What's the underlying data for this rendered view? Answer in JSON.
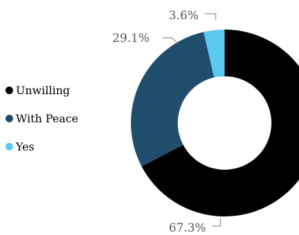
{
  "chart_data": {
    "type": "pie",
    "donut": true,
    "categories": [
      "Unwilling",
      "With Peace",
      "Yes"
    ],
    "values": [
      67.3,
      29.1,
      3.6
    ],
    "value_labels": [
      "67.3%",
      "29.1%",
      "3.6%"
    ],
    "colors": [
      "#000000",
      "#1f4d6b",
      "#5bc8f0"
    ],
    "legend": {
      "placement": "left",
      "items": [
        {
          "label": "Unwilling",
          "color": "#000000"
        },
        {
          "label": "With Peace",
          "color": "#1f4d6b"
        },
        {
          "label": "Yes",
          "color": "#5bc8f0"
        }
      ]
    },
    "title": "",
    "xlabel": "",
    "ylabel": ""
  }
}
